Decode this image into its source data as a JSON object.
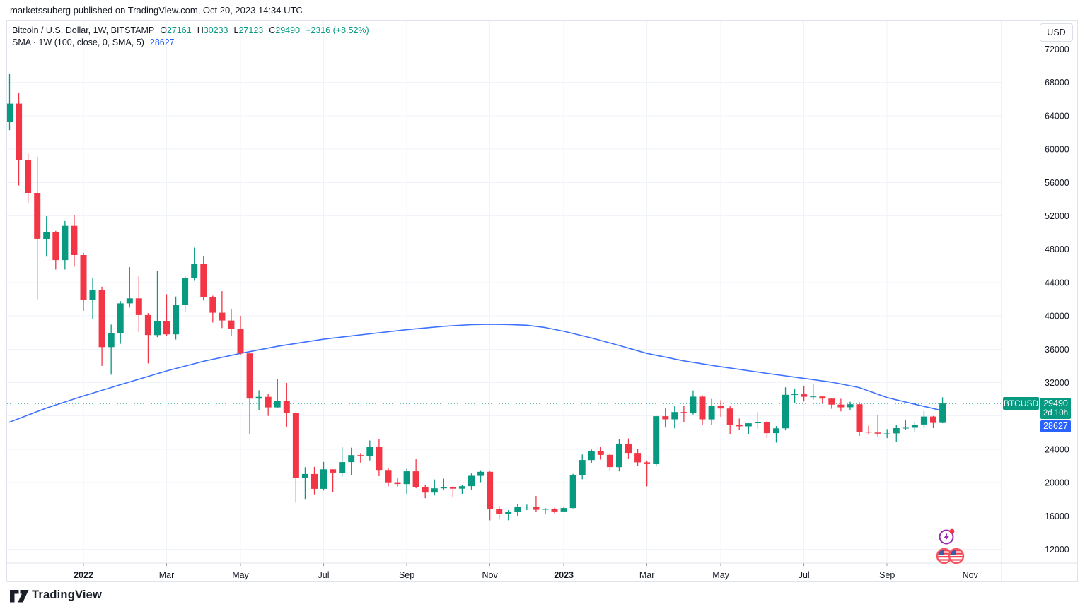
{
  "topbar": {
    "text": "marketssuberg published on TradingView.com, Oct 20, 2023 14:34 UTC"
  },
  "legend": {
    "symbol": "Bitcoin / U.S. Dollar, 1W, BITSTAMP",
    "ohlc": [
      {
        "label": "O",
        "value": "27161"
      },
      {
        "label": "H",
        "value": "30233"
      },
      {
        "label": "L",
        "value": "27123"
      },
      {
        "label": "C",
        "value": "29490"
      }
    ],
    "change": "+2316 (+8.52%)",
    "indicator": "SMA · 1W (100, close, 0, SMA, 5)",
    "indicator_value": "28627"
  },
  "price_axis": {
    "currency_button": "USD",
    "ticks": [
      72000,
      68000,
      64000,
      60000,
      56000,
      52000,
      48000,
      44000,
      40000,
      36000,
      32000,
      24000,
      20000,
      16000,
      12000
    ],
    "symbol_badge": "BTCUSD",
    "last_price_badge": "29490",
    "countdown_badge": "2d 10h",
    "indicator_badge": "28627"
  },
  "time_axis": {
    "labels": [
      {
        "label": "2022",
        "index": 8,
        "major": true
      },
      {
        "label": "Mar",
        "index": 17,
        "major": false
      },
      {
        "label": "May",
        "index": 25,
        "major": false
      },
      {
        "label": "Jul",
        "index": 34,
        "major": false
      },
      {
        "label": "Sep",
        "index": 43,
        "major": false
      },
      {
        "label": "Nov",
        "index": 52,
        "major": false
      },
      {
        "label": "2023",
        "index": 60,
        "major": true
      },
      {
        "label": "Mar",
        "index": 69,
        "major": false
      },
      {
        "label": "May",
        "index": 77,
        "major": false
      },
      {
        "label": "Jul",
        "index": 86,
        "major": false
      },
      {
        "label": "Sep",
        "index": 95,
        "major": false
      },
      {
        "label": "Nov",
        "index": 104,
        "major": false
      }
    ]
  },
  "footer": {
    "brand": "TradingView"
  },
  "icons": {
    "bottom_right_events": [
      "flash-event-icon",
      "us-flags-event-icon"
    ],
    "footer_logo": "tradingview-logo-icon"
  },
  "colors": {
    "up": "#089981",
    "down": "#F23645",
    "sma_line": "#2962FF",
    "last_price_line": "#089981",
    "grid": "#F0F3FA",
    "axis_border": "#E0E3EB",
    "tick_stub": "#9598A1",
    "text": "#131722",
    "price_badge_bg": "#089981",
    "indicator_badge_bg": "#2962FF"
  },
  "chart_data": {
    "type": "candlestick",
    "title": "Bitcoin / U.S. Dollar, 1W, BITSTAMP",
    "symbol": "BTCUSD",
    "exchange": "BITSTAMP",
    "interval": "1W",
    "last_bar": {
      "open": 27161,
      "high": 30233,
      "low": 27123,
      "close": 29490,
      "change_abs": 2316,
      "change_pct": 8.52,
      "bar_time_left": "2d 10h"
    },
    "last_price_line": 29490,
    "grid_levels": [
      72000,
      68000,
      64000,
      60000,
      56000,
      52000,
      48000,
      44000,
      40000,
      36000,
      32000,
      28000,
      24000,
      20000,
      16000,
      12000
    ],
    "price_axis_visible_range": [
      10400,
      75300
    ],
    "legend_note": "price tick 28000 hidden behind price badges",
    "series_format": [
      "week_start_date",
      "open",
      "high",
      "low",
      "close"
    ],
    "candles": [
      [
        "2021-11-08",
        63300,
        69000,
        62280,
        65470
      ],
      [
        "2021-11-15",
        65470,
        66700,
        55640,
        58660
      ],
      [
        "2021-11-22",
        58660,
        59450,
        53500,
        54750
      ],
      [
        "2021-11-29",
        54750,
        59100,
        42000,
        49250
      ],
      [
        "2021-12-06",
        49250,
        51940,
        47100,
        50080
      ],
      [
        "2021-12-13",
        50080,
        50200,
        45560,
        46700
      ],
      [
        "2021-12-20",
        46700,
        51375,
        45560,
        50800
      ],
      [
        "2021-12-27",
        50800,
        52100,
        45900,
        47300
      ],
      [
        "2022-01-03",
        47300,
        47570,
        40610,
        41880
      ],
      [
        "2022-01-10",
        41880,
        44500,
        39650,
        43100
      ],
      [
        "2022-01-17",
        43100,
        43500,
        34000,
        36250
      ],
      [
        "2022-01-24",
        36250,
        38960,
        32950,
        37920
      ],
      [
        "2022-01-31",
        37920,
        41770,
        36650,
        41500
      ],
      [
        "2022-02-07",
        41500,
        45850,
        41000,
        42100
      ],
      [
        "2022-02-14",
        42100,
        44750,
        38050,
        40100
      ],
      [
        "2022-02-21",
        40100,
        40340,
        34300,
        37700
      ],
      [
        "2022-02-28",
        37700,
        45400,
        37450,
        39400
      ],
      [
        "2022-03-07",
        39400,
        42590,
        37570,
        37790
      ],
      [
        "2022-03-14",
        37790,
        42325,
        37170,
        41280
      ],
      [
        "2022-03-21",
        41280,
        44820,
        40530,
        44540
      ],
      [
        "2022-03-28",
        44540,
        48190,
        44200,
        46280
      ],
      [
        "2022-04-04",
        46280,
        47200,
        41860,
        42280
      ],
      [
        "2022-04-11",
        42280,
        42420,
        39200,
        40380
      ],
      [
        "2022-04-18",
        40380,
        42970,
        38540,
        39450
      ],
      [
        "2022-04-25",
        39450,
        40800,
        37580,
        38470
      ],
      [
        "2022-05-02",
        38470,
        40020,
        35260,
        35500
      ],
      [
        "2022-05-09",
        35500,
        35500,
        25800,
        30080
      ],
      [
        "2022-05-16",
        30080,
        31080,
        28650,
        30290
      ],
      [
        "2022-05-23",
        30290,
        30670,
        28000,
        29030
      ],
      [
        "2022-05-30",
        29030,
        32400,
        29000,
        29840
      ],
      [
        "2022-06-06",
        29840,
        31970,
        26700,
        28400
      ],
      [
        "2022-06-13",
        28400,
        28450,
        17600,
        20550
      ],
      [
        "2022-06-20",
        20550,
        21850,
        17960,
        21030
      ],
      [
        "2022-06-27",
        21030,
        21880,
        18600,
        19250
      ],
      [
        "2022-07-04",
        19250,
        22480,
        19050,
        21590
      ],
      [
        "2022-07-11",
        21590,
        21600,
        18900,
        21200
      ],
      [
        "2022-07-18",
        21200,
        24280,
        20750,
        22460
      ],
      [
        "2022-07-25",
        22460,
        24190,
        20860,
        23300
      ],
      [
        "2022-08-01",
        23300,
        23530,
        22400,
        23180
      ],
      [
        "2022-08-08",
        23180,
        25050,
        22660,
        24300
      ],
      [
        "2022-08-15",
        24300,
        25200,
        20780,
        21520
      ],
      [
        "2022-08-22",
        21520,
        21800,
        19550,
        20040
      ],
      [
        "2022-08-29",
        20040,
        20550,
        19520,
        19830
      ],
      [
        "2022-09-05",
        19830,
        21650,
        18650,
        21360
      ],
      [
        "2022-09-12",
        21360,
        22800,
        19320,
        19420
      ],
      [
        "2022-09-19",
        19420,
        19690,
        18125,
        18800
      ],
      [
        "2022-09-26",
        18800,
        20380,
        18470,
        19310
      ],
      [
        "2022-10-03",
        19310,
        20475,
        19130,
        19440
      ],
      [
        "2022-10-10",
        19440,
        19530,
        18190,
        19270
      ],
      [
        "2022-10-17",
        19270,
        19700,
        18650,
        19570
      ],
      [
        "2022-10-24",
        19570,
        21090,
        19170,
        20810
      ],
      [
        "2022-10-31",
        20810,
        21480,
        20050,
        21300
      ],
      [
        "2022-11-07",
        21300,
        21350,
        15480,
        16800
      ],
      [
        "2022-11-14",
        16800,
        17190,
        15570,
        16270
      ],
      [
        "2022-11-21",
        16270,
        16700,
        15480,
        16460
      ],
      [
        "2022-11-28",
        16460,
        17400,
        16010,
        17100
      ],
      [
        "2022-12-05",
        17100,
        17360,
        16700,
        17130
      ],
      [
        "2022-12-12",
        17130,
        18390,
        16530,
        16740
      ],
      [
        "2022-12-19",
        16740,
        16950,
        16280,
        16835
      ],
      [
        "2022-12-26",
        16835,
        16970,
        16340,
        16540
      ],
      [
        "2023-01-02",
        16540,
        17040,
        16500,
        16950
      ],
      [
        "2023-01-09",
        16950,
        21050,
        16910,
        20880
      ],
      [
        "2023-01-16",
        20880,
        23375,
        20400,
        22710
      ],
      [
        "2023-01-23",
        22710,
        23960,
        22300,
        23750
      ],
      [
        "2023-01-30",
        23750,
        24250,
        22760,
        23330
      ],
      [
        "2023-02-06",
        23330,
        23450,
        21430,
        21860
      ],
      [
        "2023-02-13",
        21860,
        25250,
        21350,
        24630
      ],
      [
        "2023-02-20",
        24630,
        25300,
        22840,
        23560
      ],
      [
        "2023-02-27",
        23560,
        24000,
        22000,
        22430
      ],
      [
        "2023-03-06",
        22430,
        22650,
        19550,
        22220
      ],
      [
        "2023-03-13",
        22220,
        28000,
        21950,
        27970
      ],
      [
        "2023-03-20",
        27970,
        28900,
        26600,
        27600
      ],
      [
        "2023-03-27",
        27600,
        29150,
        26500,
        28470
      ],
      [
        "2023-04-03",
        28470,
        29200,
        27250,
        28330
      ],
      [
        "2023-04-10",
        28330,
        31050,
        28170,
        30310
      ],
      [
        "2023-04-17",
        30310,
        30470,
        26950,
        27590
      ],
      [
        "2023-04-24",
        27590,
        30050,
        26900,
        29230
      ],
      [
        "2023-05-01",
        29230,
        29890,
        27900,
        28890
      ],
      [
        "2023-05-08",
        28890,
        29150,
        25800,
        26930
      ],
      [
        "2023-05-15",
        26930,
        27680,
        26360,
        26750
      ],
      [
        "2023-05-22",
        26750,
        27130,
        25850,
        27120
      ],
      [
        "2023-05-29",
        27120,
        28460,
        26480,
        27250
      ],
      [
        "2023-06-05",
        27250,
        27390,
        25350,
        25930
      ],
      [
        "2023-06-12",
        25930,
        26780,
        24800,
        26510
      ],
      [
        "2023-06-19",
        26510,
        31430,
        26270,
        30530
      ],
      [
        "2023-06-26",
        30530,
        31270,
        29500,
        30590
      ],
      [
        "2023-07-03",
        30590,
        31550,
        29730,
        30290
      ],
      [
        "2023-07-10",
        30290,
        31850,
        29950,
        30330
      ],
      [
        "2023-07-17",
        30330,
        30340,
        29560,
        30080
      ],
      [
        "2023-07-24",
        30080,
        30100,
        28860,
        29360
      ],
      [
        "2023-07-31",
        29360,
        30050,
        28550,
        29040
      ],
      [
        "2023-08-07",
        29040,
        29700,
        28700,
        29400
      ],
      [
        "2023-08-14",
        29400,
        29640,
        25600,
        26100
      ],
      [
        "2023-08-21",
        26100,
        26820,
        25750,
        26000
      ],
      [
        "2023-08-28",
        26000,
        28140,
        25550,
        25870
      ],
      [
        "2023-09-04",
        25870,
        26420,
        25330,
        25900
      ],
      [
        "2023-09-11",
        25900,
        26880,
        24900,
        26530
      ],
      [
        "2023-09-18",
        26530,
        27480,
        26300,
        26580
      ],
      [
        "2023-09-25",
        26580,
        27300,
        26010,
        26960
      ],
      [
        "2023-10-02",
        26960,
        28590,
        26540,
        27920
      ],
      [
        "2023-10-09",
        27920,
        27990,
        26530,
        27160
      ],
      [
        "2023-10-16",
        27161,
        30233,
        27123,
        29490
      ]
    ],
    "sma100": {
      "name": "SMA 100, weekly close",
      "last_value": 28627,
      "points_index_value": [
        [
          0,
          27250
        ],
        [
          4,
          28950
        ],
        [
          8,
          30400
        ],
        [
          12,
          31750
        ],
        [
          17,
          33400
        ],
        [
          21,
          34550
        ],
        [
          25,
          35500
        ],
        [
          29,
          36350
        ],
        [
          34,
          37200
        ],
        [
          39,
          37850
        ],
        [
          43,
          38350
        ],
        [
          47,
          38750
        ],
        [
          50,
          38950
        ],
        [
          52,
          39000
        ],
        [
          54,
          38970
        ],
        [
          56,
          38880
        ],
        [
          58,
          38600
        ],
        [
          60,
          38150
        ],
        [
          63,
          37350
        ],
        [
          66,
          36450
        ],
        [
          69,
          35500
        ],
        [
          73,
          34600
        ],
        [
          77,
          33900
        ],
        [
          82,
          33100
        ],
        [
          86,
          32500
        ],
        [
          89,
          32050
        ],
        [
          92,
          31400
        ],
        [
          95,
          30200
        ],
        [
          98,
          29400
        ],
        [
          101,
          28627
        ]
      ]
    }
  }
}
